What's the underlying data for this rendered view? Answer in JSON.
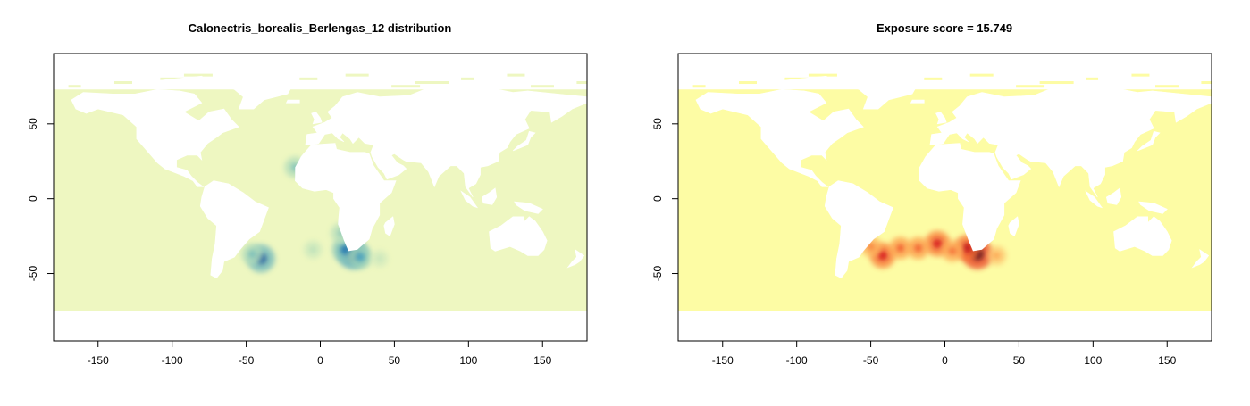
{
  "chart_data": [
    {
      "type": "heatmap",
      "title": "Calonectris_borealis_Berlengas_12 distribution",
      "xlabel": "",
      "ylabel": "",
      "xlim": [
        -180,
        180
      ],
      "ylim": [
        -95,
        97
      ],
      "x_ticks": [
        -150,
        -100,
        -50,
        0,
        50,
        100,
        150
      ],
      "y_ticks": [
        -50,
        0,
        50
      ],
      "ocean_color": "#eef7c1",
      "palette": [
        "#eef7c1",
        "#9fd4b8",
        "#2c8fbf",
        "#0c2c84"
      ],
      "hotspots": [
        {
          "lon": 22,
          "lat": -37,
          "value": 1.0
        },
        {
          "lon": 17,
          "lat": -34,
          "value": 0.75
        },
        {
          "lon": 27,
          "lat": -39,
          "value": 0.6
        },
        {
          "lon": -40,
          "lat": -40,
          "value": 0.85
        },
        {
          "lon": -46,
          "lat": -37,
          "value": 0.45
        },
        {
          "lon": 14,
          "lat": -23,
          "value": 0.4
        },
        {
          "lon": -17,
          "lat": 21,
          "value": 0.45
        },
        {
          "lon": -5,
          "lat": -34,
          "value": 0.25
        },
        {
          "lon": 40,
          "lat": -40,
          "value": 0.2
        }
      ]
    },
    {
      "type": "heatmap",
      "title": "Exposure score = 15.749",
      "xlabel": "",
      "ylabel": "",
      "xlim": [
        -180,
        180
      ],
      "ylim": [
        -95,
        97
      ],
      "x_ticks": [
        -150,
        -100,
        -50,
        0,
        50,
        100,
        150
      ],
      "y_ticks": [
        -50,
        0,
        50
      ],
      "ocean_color": "#fdfca4",
      "palette": [
        "#fdfca4",
        "#fd8d3c",
        "#e31a1c",
        "#5a0a1c"
      ],
      "hotspots": [
        {
          "lon": 22,
          "lat": -37,
          "value": 1.0
        },
        {
          "lon": 15,
          "lat": -33,
          "value": 0.75
        },
        {
          "lon": -5,
          "lat": -30,
          "value": 0.7
        },
        {
          "lon": -42,
          "lat": -38,
          "value": 0.7
        },
        {
          "lon": -30,
          "lat": -33,
          "value": 0.5
        },
        {
          "lon": -18,
          "lat": -33,
          "value": 0.5
        },
        {
          "lon": -50,
          "lat": -32,
          "value": 0.4
        },
        {
          "lon": 5,
          "lat": -35,
          "value": 0.45
        },
        {
          "lon": 35,
          "lat": -38,
          "value": 0.3
        }
      ]
    }
  ]
}
